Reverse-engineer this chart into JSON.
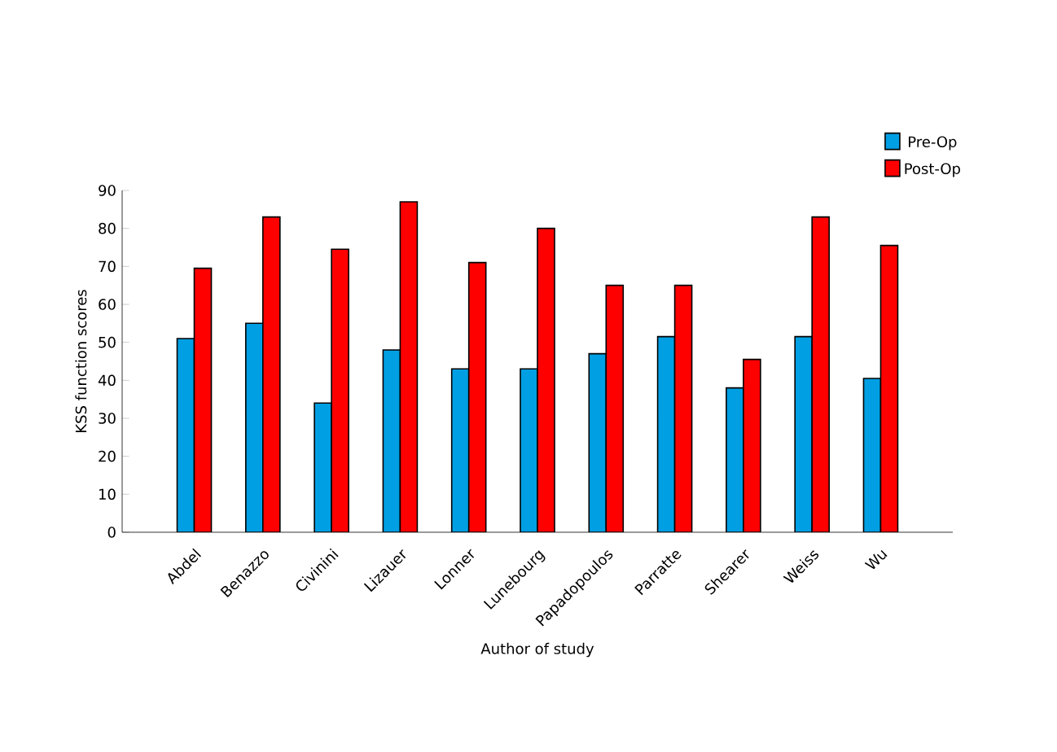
{
  "chart_data": {
    "type": "bar",
    "xlabel": "Author of study",
    "ylabel": "KSS function scores",
    "categories": [
      "Abdel",
      "Benazzo",
      "Civinini",
      "Lizauer",
      "Lonner",
      "Lunebourg",
      "Papadopoulos",
      "Parratte",
      "Shearer",
      "Weiss",
      "Wu"
    ],
    "series": [
      {
        "name": "Pre-Op",
        "color": "#009fe3",
        "values": [
          51,
          55,
          34,
          48,
          43,
          43,
          47,
          51.5,
          38,
          51.5,
          40.5
        ]
      },
      {
        "name": "Post-Op",
        "color": "#ff0000",
        "values": [
          69.5,
          83,
          74.5,
          87,
          71,
          80,
          65,
          65,
          45.5,
          83,
          75.5
        ]
      }
    ],
    "ylim": [
      0,
      90
    ],
    "yticks": [
      0,
      10,
      20,
      30,
      40,
      50,
      60,
      70,
      80,
      90
    ],
    "legend": "top right",
    "grid": false
  }
}
